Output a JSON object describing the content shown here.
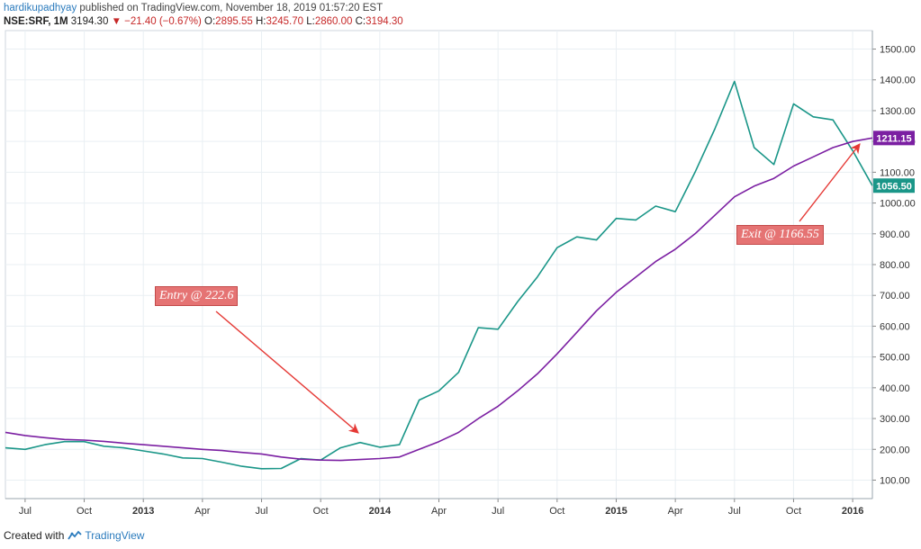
{
  "header": {
    "user": "hardikupadhyay",
    "published": "published on TradingView.com, November 18, 2019 01:57:20 EST"
  },
  "symbol_row": {
    "symbol": "NSE:SRF, 1M",
    "last": "3194.30",
    "change_icon": "down-triangle-icon",
    "change": "−21.40 (−0.67%)",
    "open_label": "O:",
    "open": "2895.55",
    "high_label": "H:",
    "high": "3245.70",
    "low_label": "L:",
    "low": "2860.00",
    "close_label": "C:",
    "close": "3194.30"
  },
  "footer": {
    "created_with": "Created with",
    "brand": "TradingView",
    "brand_icon": "tradingview-logo-icon"
  },
  "annotations": {
    "entry": "Entry @ 222.6",
    "exit": "Exit @ 1166.55"
  },
  "colors": {
    "price_line": "#1a9688",
    "ma_line": "#7b1fa2",
    "arrow": "#e53935",
    "annotation_bg": "#e57373",
    "last_price_badge": "#1a9688",
    "ma_badge": "#7b1fa2"
  },
  "chart_data": {
    "type": "line",
    "x_tick_labels": [
      "Jul",
      "Oct",
      "2013",
      "Apr",
      "Jul",
      "Oct",
      "2014",
      "Apr",
      "Jul",
      "Oct",
      "2015",
      "Apr",
      "Jul",
      "Oct",
      "2016"
    ],
    "y_tick_labels": [
      "100.00",
      "200.00",
      "300.00",
      "400.00",
      "500.00",
      "600.00",
      "700.00",
      "800.00",
      "900.00",
      "1000.00",
      "1100.00",
      "1200.00",
      "1300.00",
      "1400.00",
      "1500.00"
    ],
    "y_range": [
      40,
      1560
    ],
    "x_range": [
      "2012-06",
      "2016-02"
    ],
    "grid": true,
    "series": [
      {
        "x": [
          "2012-06",
          "2012-07",
          "2012-08",
          "2012-09",
          "2012-10",
          "2012-11",
          "2012-12",
          "2013-01",
          "2013-02",
          "2013-03",
          "2013-04",
          "2013-05",
          "2013-06",
          "2013-07",
          "2013-08",
          "2013-09",
          "2013-10",
          "2013-11",
          "2013-12",
          "2014-01",
          "2014-02",
          "2014-03",
          "2014-04",
          "2014-05",
          "2014-06",
          "2014-07",
          "2014-08",
          "2014-09",
          "2014-10",
          "2014-11",
          "2014-12",
          "2015-01",
          "2015-02",
          "2015-03",
          "2015-04",
          "2015-05",
          "2015-06",
          "2015-07",
          "2015-08",
          "2015-09",
          "2015-10",
          "2015-11",
          "2015-12",
          "2016-01",
          "2016-02"
        ],
        "values": [
          205,
          200,
          215,
          225,
          225,
          210,
          205,
          195,
          185,
          172,
          170,
          158,
          145,
          137,
          138,
          170,
          165,
          205,
          222,
          207,
          215,
          360,
          390,
          450,
          595,
          590,
          680,
          760,
          855,
          890,
          880,
          950,
          945,
          990,
          972,
          1100,
          1240,
          1395,
          1180,
          1125,
          1322,
          1280,
          1270,
          1170,
          1056.5
        ]
      },
      {
        "x": [
          "2012-06",
          "2012-07",
          "2012-08",
          "2012-09",
          "2012-10",
          "2012-11",
          "2012-12",
          "2013-01",
          "2013-02",
          "2013-03",
          "2013-04",
          "2013-05",
          "2013-06",
          "2013-07",
          "2013-08",
          "2013-09",
          "2013-10",
          "2013-11",
          "2013-12",
          "2014-01",
          "2014-02",
          "2014-03",
          "2014-04",
          "2014-05",
          "2014-06",
          "2014-07",
          "2014-08",
          "2014-09",
          "2014-10",
          "2014-11",
          "2014-12",
          "2015-01",
          "2015-02",
          "2015-03",
          "2015-04",
          "2015-05",
          "2015-06",
          "2015-07",
          "2015-08",
          "2015-09",
          "2015-10",
          "2015-11",
          "2015-12",
          "2016-01",
          "2016-02"
        ],
        "values": [
          255,
          245,
          238,
          232,
          230,
          226,
          220,
          215,
          210,
          205,
          200,
          196,
          190,
          185,
          175,
          168,
          165,
          164,
          167,
          170,
          175,
          200,
          225,
          255,
          300,
          340,
          390,
          445,
          510,
          580,
          650,
          710,
          760,
          810,
          850,
          900,
          960,
          1020,
          1055,
          1080,
          1120,
          1150,
          1180,
          1200,
          1211.15
        ]
      }
    ],
    "price_labels": [
      "1211.15",
      "1056.50"
    ]
  }
}
